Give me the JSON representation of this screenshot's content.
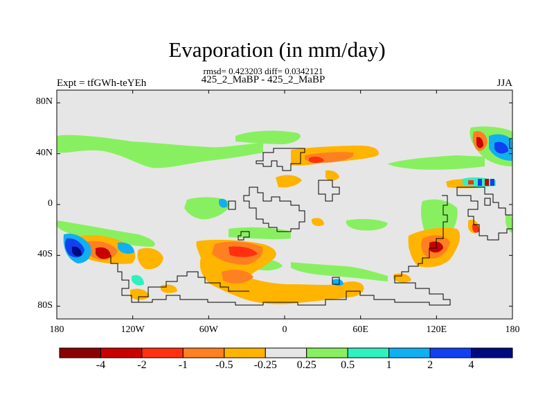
{
  "title": "Evaporation (in mm/day)",
  "subtitle_line1": "rmsd= 0.423203 diff= 0.0342121",
  "subtitle_line2": "425_2_MaBP - 425_2_MaBP",
  "left_label": "Expt = tfGWh-teYEh",
  "right_label": "JJA",
  "colors": {
    "background_land": "#e6e6e6",
    "coastline": "#000000"
  },
  "map": {
    "lon_range": [
      -180,
      180
    ],
    "lat_range": [
      -90,
      90
    ],
    "lat_ticks": [
      {
        "value": 80,
        "label": "80N"
      },
      {
        "value": 40,
        "label": "40N"
      },
      {
        "value": 0,
        "label": "0"
      },
      {
        "value": -40,
        "label": "40S"
      },
      {
        "value": -80,
        "label": "80S"
      }
    ],
    "lon_ticks": [
      {
        "value": -180,
        "label": "180"
      },
      {
        "value": -120,
        "label": "120W"
      },
      {
        "value": -60,
        "label": "60W"
      },
      {
        "value": 0,
        "label": "0"
      },
      {
        "value": 60,
        "label": "60E"
      },
      {
        "value": 120,
        "label": "120E"
      },
      {
        "value": 180,
        "label": "180"
      }
    ]
  },
  "colorbar": {
    "colors": [
      "#8b0000",
      "#c80000",
      "#ff3010",
      "#ff8020",
      "#ffb400",
      "#e6e6e6",
      "#88f060",
      "#30f0c0",
      "#10b0f0",
      "#1040f0",
      "#000a80"
    ],
    "labels": [
      "-4",
      "-2",
      "-1",
      "-0.5",
      "-0.25",
      "0.25",
      "0.5",
      "1",
      "2",
      "4"
    ]
  }
}
